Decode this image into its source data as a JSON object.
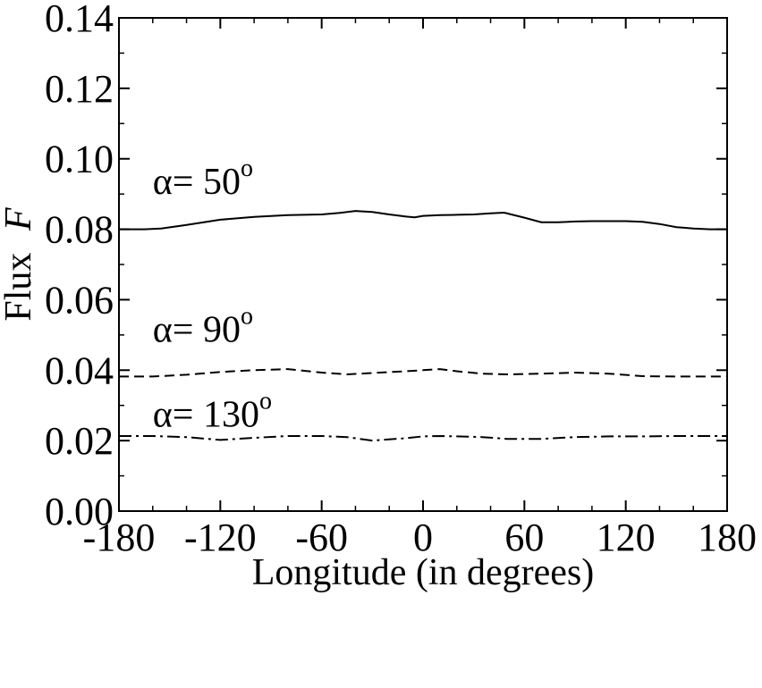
{
  "chart_data": {
    "type": "line",
    "title": "",
    "xlabel": "Longitude (in degrees)",
    "ylabel": "Flux",
    "ylabel_symbol": "F",
    "xlim": [
      -180,
      180
    ],
    "ylim": [
      0.0,
      0.14
    ],
    "x_ticks": [
      -180,
      -120,
      -60,
      0,
      60,
      120,
      180
    ],
    "x_tick_labels": [
      "-180",
      "-120",
      "-60",
      "0",
      "60",
      "120",
      "180"
    ],
    "y_ticks": [
      0.0,
      0.02,
      0.04,
      0.06,
      0.08,
      0.1,
      0.12,
      0.14
    ],
    "y_tick_labels": [
      "0.00",
      "0.02",
      "0.04",
      "0.06",
      "0.08",
      "0.10",
      "0.12",
      "0.14"
    ],
    "grid": false,
    "legend": "none",
    "series": [
      {
        "style": "solid",
        "color": "#000000",
        "x": [
          -180,
          -165,
          -155,
          -140,
          -120,
          -100,
          -80,
          -60,
          -50,
          -40,
          -30,
          -20,
          -10,
          -5,
          0,
          10,
          20,
          30,
          40,
          48,
          60,
          70,
          80,
          90,
          100,
          110,
          120,
          130,
          140,
          150,
          160,
          170,
          180
        ],
        "y": [
          0.08,
          0.08,
          0.0802,
          0.0812,
          0.0827,
          0.0835,
          0.084,
          0.0842,
          0.0846,
          0.0852,
          0.0849,
          0.0842,
          0.0836,
          0.0834,
          0.0838,
          0.084,
          0.0841,
          0.0842,
          0.0845,
          0.0847,
          0.0833,
          0.082,
          0.082,
          0.0822,
          0.0823,
          0.0823,
          0.0823,
          0.0821,
          0.0815,
          0.0806,
          0.0802,
          0.08,
          0.08
        ]
      },
      {
        "style": "dashed",
        "color": "#000000",
        "x": [
          -180,
          -160,
          -140,
          -120,
          -100,
          -80,
          -60,
          -45,
          -30,
          -10,
          0,
          10,
          20,
          35,
          50,
          70,
          90,
          110,
          130,
          150,
          170,
          180
        ],
        "y": [
          0.0382,
          0.0382,
          0.0387,
          0.0395,
          0.04,
          0.0403,
          0.0393,
          0.0388,
          0.0392,
          0.0397,
          0.04,
          0.0403,
          0.0397,
          0.039,
          0.0388,
          0.039,
          0.0393,
          0.039,
          0.0383,
          0.0382,
          0.0382,
          0.0382
        ]
      },
      {
        "style": "dash-dot",
        "color": "#000000",
        "x": [
          -180,
          -160,
          -140,
          -120,
          -100,
          -80,
          -60,
          -45,
          -30,
          -10,
          0,
          10,
          20,
          35,
          50,
          70,
          90,
          110,
          130,
          150,
          170,
          180
        ],
        "y": [
          0.0213,
          0.0213,
          0.021,
          0.0202,
          0.0208,
          0.0213,
          0.0213,
          0.021,
          0.02,
          0.0207,
          0.0212,
          0.0213,
          0.0212,
          0.021,
          0.0205,
          0.0205,
          0.021,
          0.0212,
          0.0212,
          0.0213,
          0.0213,
          0.0213
        ]
      }
    ],
    "annotations": [
      {
        "symbol": "α",
        "text": "= 50",
        "sup": "o",
        "x": -160,
        "y": 0.09
      },
      {
        "symbol": "α",
        "text": "= 90",
        "sup": "o",
        "x": -160,
        "y": 0.048
      },
      {
        "symbol": "α",
        "text": "= 130",
        "sup": "o",
        "x": -160,
        "y": 0.024
      }
    ]
  }
}
